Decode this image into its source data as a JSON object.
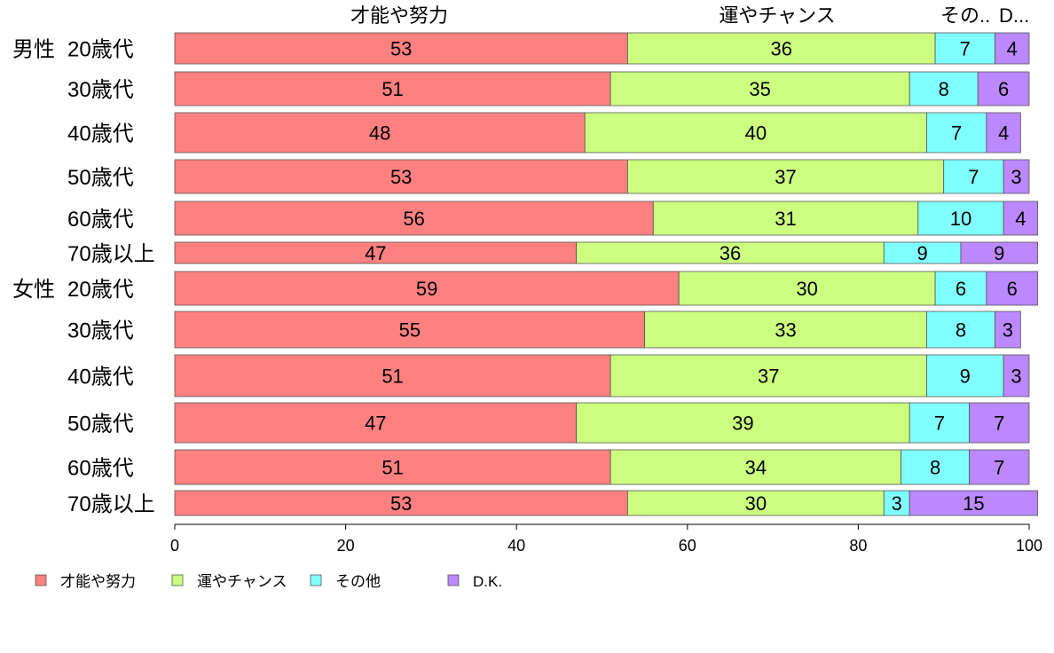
{
  "chart_data": {
    "type": "bar",
    "orientation": "horizontal",
    "stacked": true,
    "top_labels": [
      "才能や努力",
      "運やチャンス",
      "その..",
      "D..."
    ],
    "groups": [
      {
        "name": "男性",
        "start": 0
      },
      {
        "name": "女性",
        "start": 6
      }
    ],
    "categories": [
      "20歳代",
      "30歳代",
      "40歳代",
      "50歳代",
      "60歳代",
      "70歳以上",
      "20歳代",
      "30歳代",
      "40歳代",
      "50歳代",
      "60歳代",
      "70歳以上"
    ],
    "series": [
      {
        "name": "才能や努力",
        "color": "#ff8080",
        "values": [
          53,
          51,
          48,
          53,
          56,
          47,
          59,
          55,
          51,
          47,
          51,
          53
        ]
      },
      {
        "name": "運やチャンス",
        "color": "#ccff80",
        "values": [
          36,
          35,
          40,
          37,
          31,
          36,
          30,
          33,
          37,
          39,
          34,
          30
        ]
      },
      {
        "name": "その他",
        "color": "#80ffff",
        "values": [
          7,
          8,
          7,
          7,
          10,
          9,
          6,
          8,
          9,
          7,
          8,
          3
        ]
      },
      {
        "name": "D.K.",
        "color": "#bb88ff",
        "values": [
          4,
          6,
          4,
          3,
          4,
          9,
          6,
          3,
          3,
          7,
          7,
          15
        ]
      }
    ],
    "xlim": [
      0,
      100
    ],
    "xticks": [
      0,
      20,
      40,
      60,
      80,
      100
    ],
    "legend_position": "bottom-left"
  }
}
